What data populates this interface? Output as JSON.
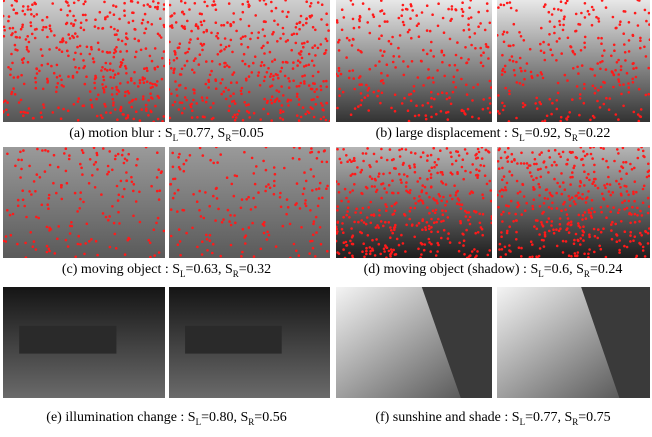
{
  "panels": [
    {
      "caption": [
        "(a) motion blur : S",
        "L",
        "=0.77, S",
        "R",
        "=0.05"
      ]
    },
    {
      "caption": [
        "(b) large displacement : S",
        "L",
        "=0.92, S",
        "R",
        "=0.22"
      ]
    },
    {
      "caption": [
        "(c) moving object : S",
        "L",
        "=0.63, S",
        "R",
        "=0.32"
      ]
    },
    {
      "caption": [
        "(d) moving object (shadow) : S",
        "L",
        "=0.6, S",
        "R",
        "=0.24"
      ]
    },
    {
      "caption": [
        "(e) illumination change : S",
        "L",
        "=0.80, S",
        "R",
        "=0.56"
      ]
    },
    {
      "caption": [
        "(f) sunshine and shade : S",
        "L",
        "=0.77, S",
        "R",
        "=0.75"
      ]
    }
  ]
}
